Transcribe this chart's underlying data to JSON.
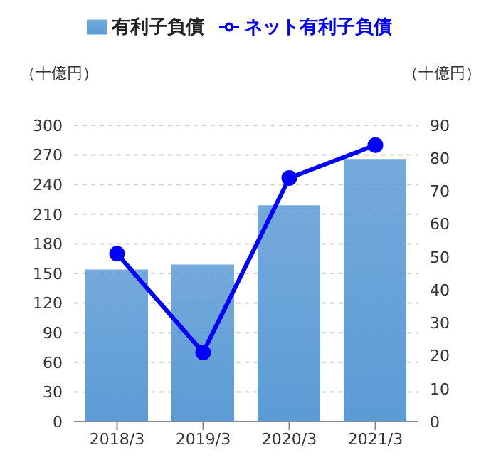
{
  "chart_data": {
    "type": "bar",
    "ylabel": "（十億円）",
    "y2label": "（十億円）",
    "categories": [
      "2018/3",
      "2019/3",
      "2020/3",
      "2021/3"
    ],
    "series": [
      {
        "name": "有利子負債",
        "color": "#5b9bd5",
        "values": [
          154,
          159,
          219,
          266
        ]
      },
      {
        "name": "ネット有利子負債",
        "type": "line",
        "axis": "y2",
        "color": "#0000ff",
        "values": [
          51,
          21,
          74,
          84
        ]
      }
    ],
    "ylim": [
      0,
      300
    ],
    "yticks": [
      0,
      30,
      60,
      90,
      120,
      150,
      180,
      210,
      240,
      270,
      300
    ],
    "y2lim": [
      0,
      90
    ],
    "y2ticks": [
      0,
      10,
      20,
      30,
      40,
      50,
      60,
      70,
      80,
      90
    ],
    "grid": "y",
    "legend": "top",
    "marker": "circle",
    "line_style": "solid"
  }
}
